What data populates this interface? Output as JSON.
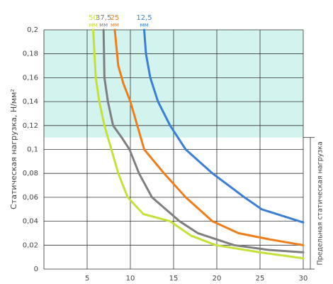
{
  "chart_data": {
    "type": "line",
    "y_label": "Статическая нагрузка, Н/мм²",
    "annotation": "Предельная статическая нагрузка",
    "band": {
      "from": 0.11,
      "to": 0.2,
      "color": "#d3f3ef"
    },
    "unit": "мм",
    "xlim": [
      0,
      30
    ],
    "xticks": [
      5,
      10,
      15,
      20,
      25,
      30
    ],
    "ylim": [
      0,
      0.2
    ],
    "yticks": [
      0,
      {
        "value": 0.02,
        "label": "0,02"
      },
      {
        "value": 0.04,
        "label": "0,04"
      },
      {
        "value": 0.06,
        "label": "0,06"
      },
      {
        "value": 0.08,
        "label": "0,08"
      },
      {
        "value": 0.1,
        "label": "0,1"
      },
      {
        "value": 0.12,
        "label": "0,12"
      },
      {
        "value": 0.14,
        "label": "0,14"
      },
      {
        "value": 0.16,
        "label": "0,16"
      },
      {
        "value": 0.18,
        "label": "0,18"
      },
      {
        "value": 0.2,
        "label": "0,2"
      }
    ],
    "grid": true,
    "series": [
      {
        "name": "50",
        "color": "#c6e03a",
        "x": [
          5.7,
          6.0,
          6.4,
          7.0,
          7.8,
          8.6,
          9.7,
          11.5,
          14.6,
          17.0,
          19.9,
          25.0,
          30.0
        ],
        "values": [
          0.2,
          0.16,
          0.14,
          0.12,
          0.1,
          0.08,
          0.06,
          0.046,
          0.04,
          0.028,
          0.02,
          0.014,
          0.009
        ]
      },
      {
        "name": "37,5",
        "color": "#7f7f7f",
        "x": [
          6.9,
          7.0,
          7.4,
          8.0,
          9.0,
          9.9,
          11.0,
          12.5,
          15.7,
          17.8,
          22.0,
          26.0,
          30.0
        ],
        "values": [
          0.2,
          0.16,
          0.14,
          0.12,
          0.11,
          0.1,
          0.08,
          0.06,
          0.04,
          0.03,
          0.02,
          0.016,
          0.014
        ]
      },
      {
        "name": "25",
        "color": "#ef7d1a",
        "x": [
          8.2,
          8.6,
          9.2,
          10.0,
          10.8,
          11.6,
          13.9,
          16.4,
          19.5,
          22.5,
          26.0,
          30.0
        ],
        "values": [
          0.2,
          0.17,
          0.155,
          0.14,
          0.12,
          0.1,
          0.08,
          0.06,
          0.04,
          0.03,
          0.025,
          0.02
        ]
      },
      {
        "name": "12,5",
        "color": "#3a7fd5",
        "x": [
          11.6,
          11.8,
          12.3,
          13.2,
          14.6,
          16.4,
          19.5,
          23.2,
          25.2,
          30.0
        ],
        "values": [
          0.2,
          0.18,
          0.16,
          0.14,
          0.12,
          0.1,
          0.08,
          0.06,
          0.05,
          0.039
        ]
      }
    ]
  }
}
